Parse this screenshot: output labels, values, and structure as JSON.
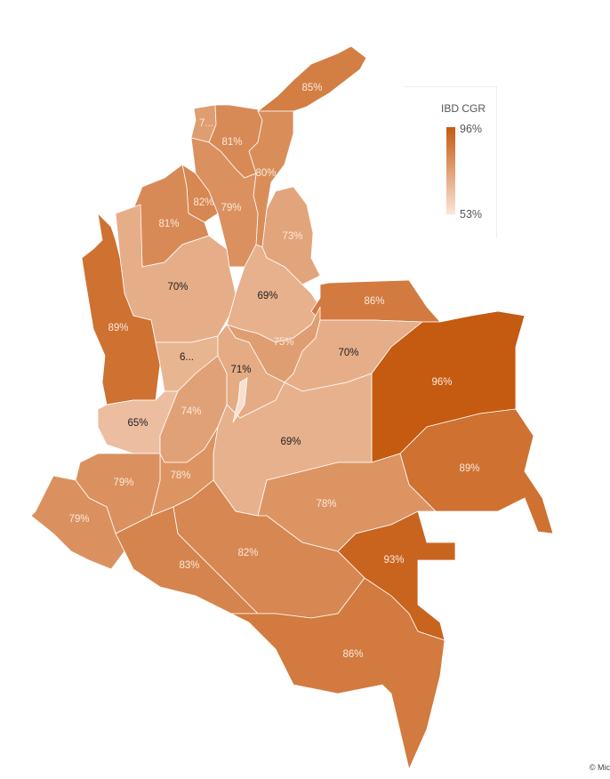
{
  "legend": {
    "title": "IBD CGR",
    "max_label": "96%",
    "min_label": "53%",
    "max_value": 96,
    "min_value": 53,
    "color_max": "#c55a11",
    "color_min": "#fbe5d6"
  },
  "credit": "© Mic",
  "regions": [
    {
      "id": "guajira",
      "value": 85,
      "label": "85%"
    },
    {
      "id": "atlantico",
      "value": 75,
      "label": "7..."
    },
    {
      "id": "magdalena",
      "value": 81,
      "label": "81%"
    },
    {
      "id": "cesar",
      "value": 80,
      "label": "80%"
    },
    {
      "id": "sucre",
      "value": 82,
      "label": "82%"
    },
    {
      "id": "bolivar",
      "value": 79,
      "label": "79%"
    },
    {
      "id": "cordoba",
      "value": 81,
      "label": "81%"
    },
    {
      "id": "norte-santander",
      "value": 73,
      "label": "73%"
    },
    {
      "id": "antioquia",
      "value": 70,
      "label": "70%"
    },
    {
      "id": "santander",
      "value": 69,
      "label": "69%"
    },
    {
      "id": "arauca",
      "value": 86,
      "label": "86%"
    },
    {
      "id": "choco",
      "value": 89,
      "label": "89%"
    },
    {
      "id": "boyaca",
      "value": 75,
      "label": "75%"
    },
    {
      "id": "casanare",
      "value": 70,
      "label": "70%"
    },
    {
      "id": "eje-cafetero",
      "value": 68,
      "label": "6..."
    },
    {
      "id": "cundinamarca",
      "value": 71,
      "label": "71%"
    },
    {
      "id": "bogota",
      "value": 55,
      "label": ""
    },
    {
      "id": "vichada",
      "value": 96,
      "label": "96%"
    },
    {
      "id": "valle",
      "value": 65,
      "label": "65%"
    },
    {
      "id": "tolima",
      "value": 74,
      "label": "74%"
    },
    {
      "id": "meta",
      "value": 69,
      "label": "69%"
    },
    {
      "id": "guainia",
      "value": 89,
      "label": "89%"
    },
    {
      "id": "huila",
      "value": 78,
      "label": "78%"
    },
    {
      "id": "cauca",
      "value": 79,
      "label": "79%"
    },
    {
      "id": "narino",
      "value": 79,
      "label": "79%"
    },
    {
      "id": "guaviare",
      "value": 78,
      "label": "78%"
    },
    {
      "id": "vaupes",
      "value": 93,
      "label": "93%"
    },
    {
      "id": "putumayo",
      "value": 83,
      "label": "83%"
    },
    {
      "id": "caqueta",
      "value": 82,
      "label": "82%"
    },
    {
      "id": "amazonas",
      "value": 86,
      "label": "86%"
    }
  ]
}
